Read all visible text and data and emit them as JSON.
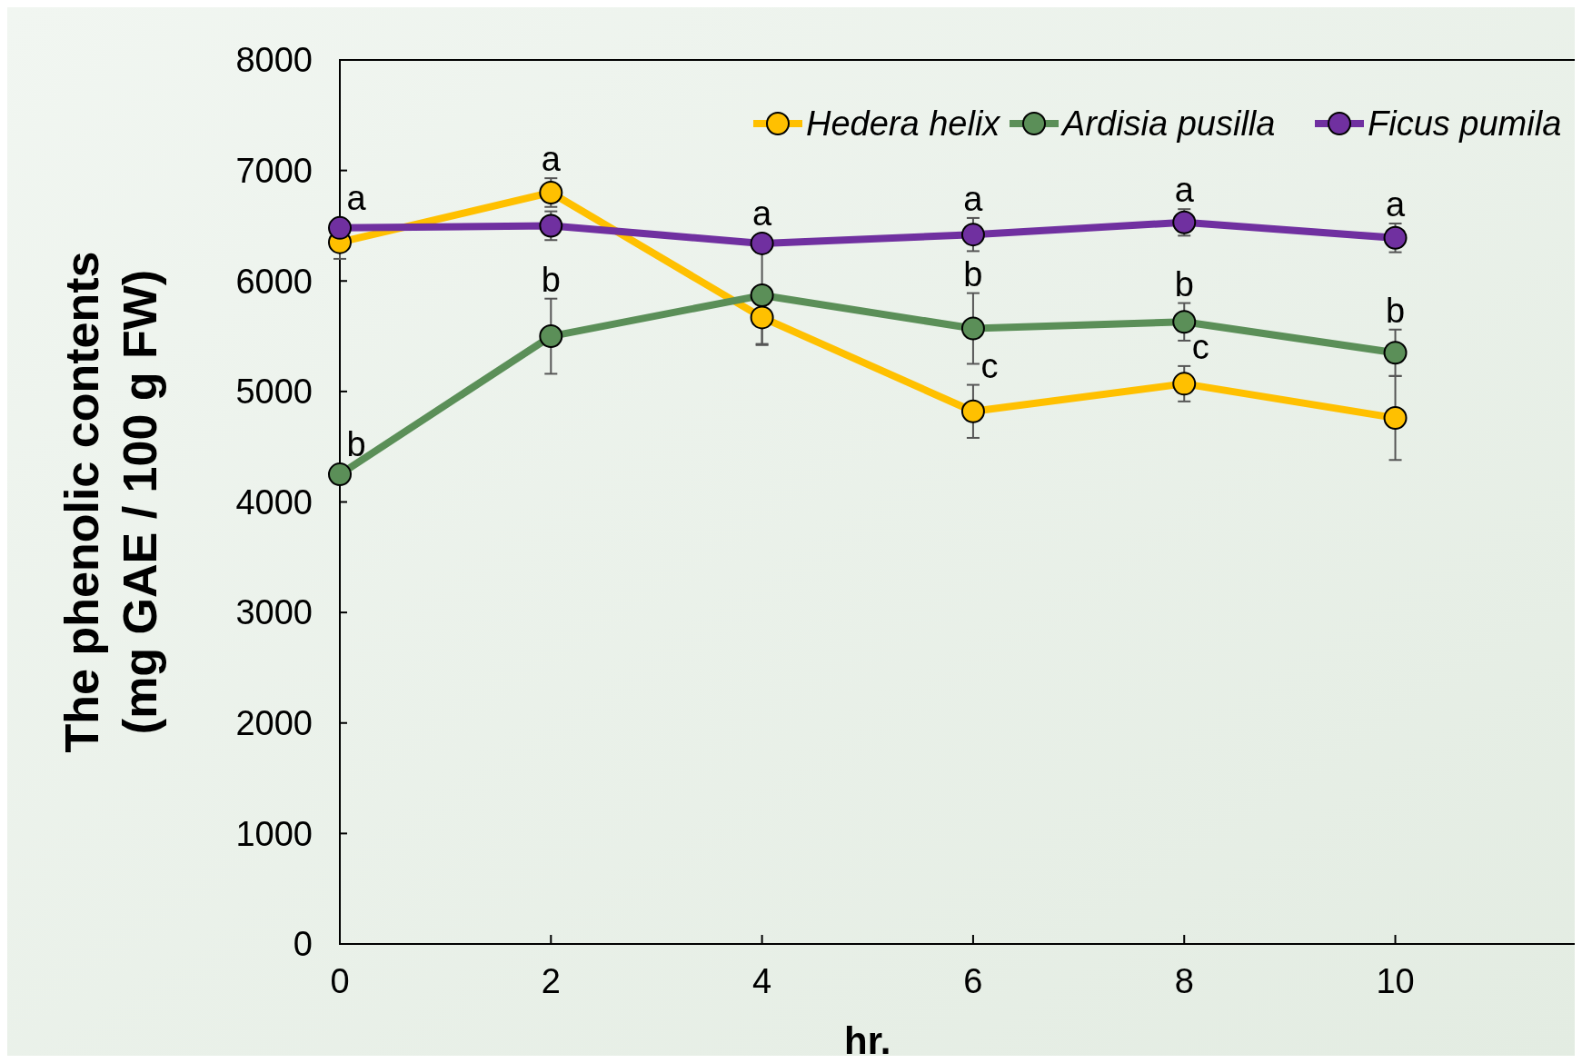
{
  "chart_data": {
    "type": "line",
    "xlabel": "hr.",
    "ylabel": "The phenolic contents\n(mg GAE / 100 g FW)",
    "x": [
      0,
      2,
      4,
      6,
      8,
      10
    ],
    "xlim": [
      0,
      11.7
    ],
    "xticks": [
      0,
      2,
      4,
      6,
      8,
      10
    ],
    "ylim": [
      0,
      8000
    ],
    "yticks": [
      0,
      1000,
      2000,
      3000,
      4000,
      5000,
      6000,
      7000,
      8000
    ],
    "grid": false,
    "legend": "top right",
    "marker": "circle",
    "line_style": "solid",
    "series": [
      {
        "name": "Hedera helix",
        "color": "#ffc000",
        "values": [
          6350,
          6800,
          5670,
          4820,
          5070,
          4760
        ],
        "errors": [
          150,
          130,
          240,
          240,
          160,
          380
        ]
      },
      {
        "name": "Ardisia pusilla",
        "color": "#5b8f58",
        "values": [
          4250,
          5500,
          5870,
          5570,
          5630,
          5350
        ],
        "errors": [
          null,
          340,
          450,
          320,
          170,
          210
        ]
      },
      {
        "name": "Ficus pumila",
        "color": "#7030a0",
        "values": [
          6480,
          6500,
          6340,
          6420,
          6530,
          6390
        ],
        "errors": [
          null,
          130,
          80,
          150,
          120,
          130
        ]
      }
    ],
    "annotations": [
      {
        "text": "a",
        "x": 0,
        "y": 6480
      },
      {
        "text": "b",
        "x": 0,
        "y": 4250
      },
      {
        "text": "a",
        "x": 2,
        "y": 6800
      },
      {
        "text": "b",
        "x": 2,
        "y": 5500
      },
      {
        "text": "a",
        "x": 4,
        "y": 6340
      },
      {
        "text": "a",
        "x": 6,
        "y": 6420
      },
      {
        "text": "b",
        "x": 6,
        "y": 5570
      },
      {
        "text": "c",
        "x": 6,
        "y": 4820
      },
      {
        "text": "a",
        "x": 8,
        "y": 6530
      },
      {
        "text": "b",
        "x": 8,
        "y": 5630
      },
      {
        "text": "c",
        "x": 8,
        "y": 5070
      },
      {
        "text": "a",
        "x": 10,
        "y": 6390
      },
      {
        "text": "b",
        "x": 10,
        "y": 5350
      }
    ]
  }
}
